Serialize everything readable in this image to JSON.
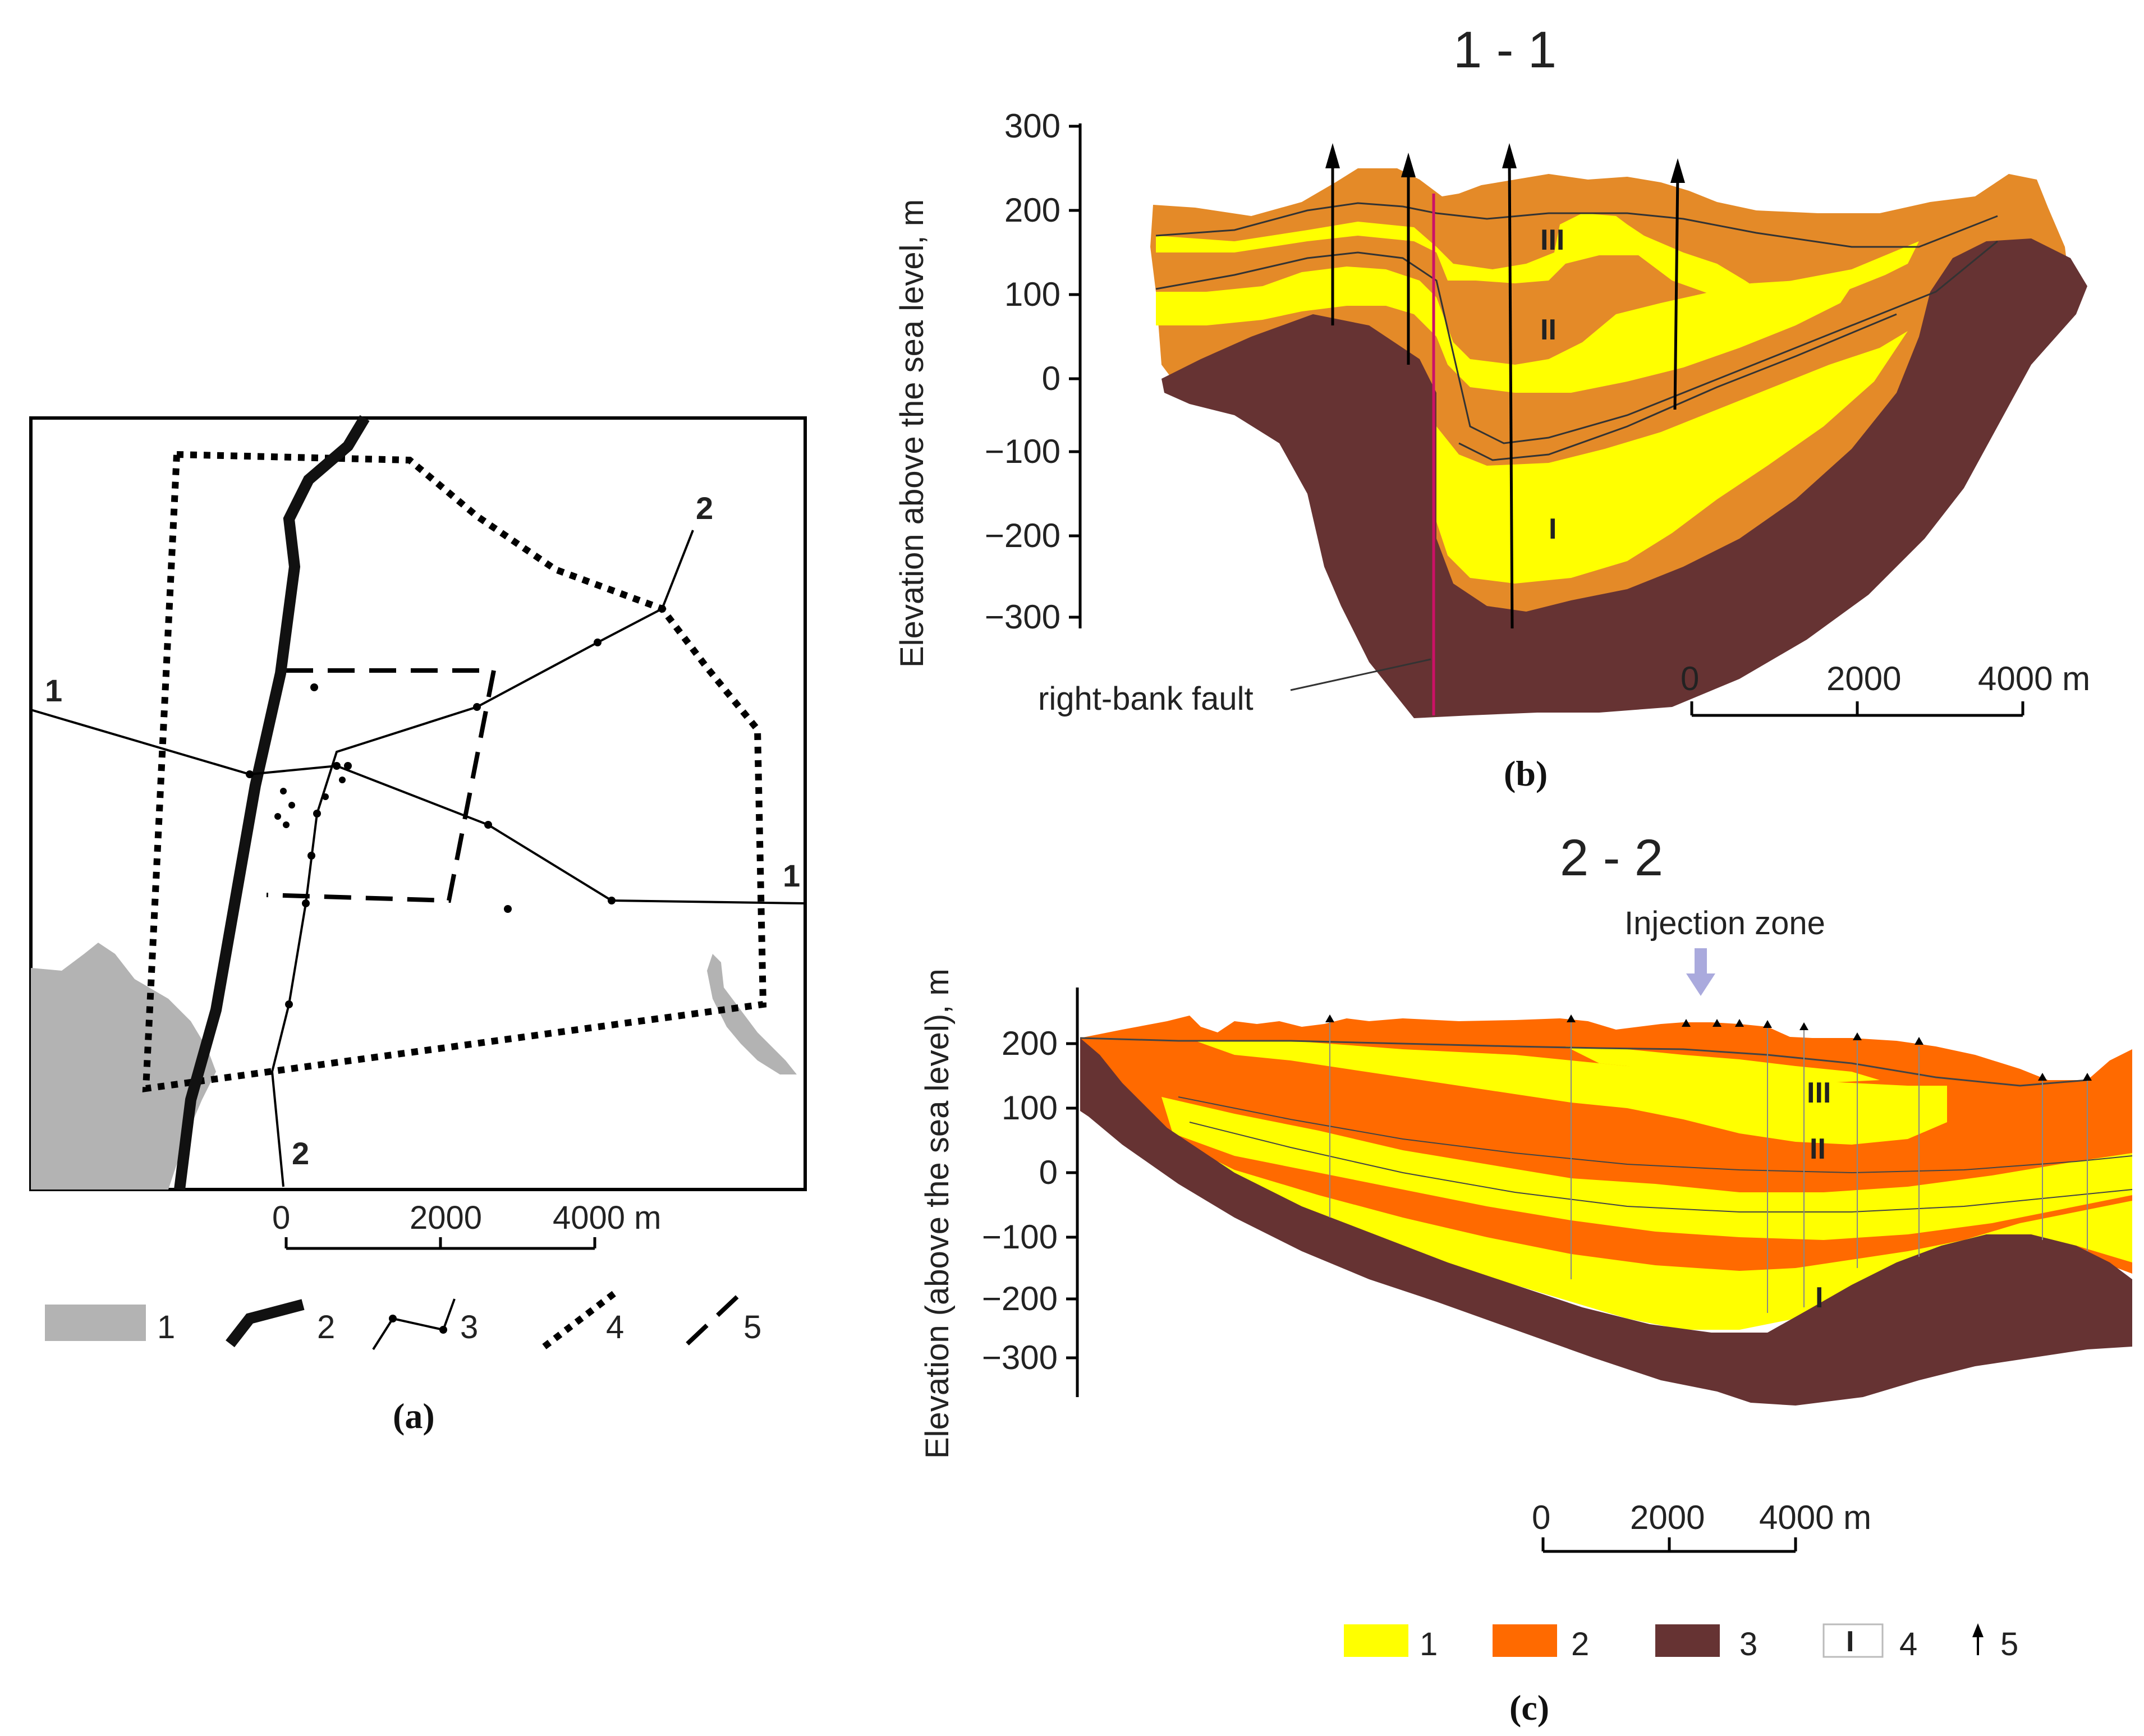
{
  "panel_a": {
    "caption": "(a)",
    "section_labels": {
      "line1_left": "1",
      "line1_right": "1",
      "line2_top": "2",
      "line2_bottom": "2"
    },
    "scale": {
      "tick0": "0",
      "tick1": "2000",
      "tick2": "4000 m"
    },
    "legend": [
      {
        "num": "1",
        "item": "grey-area"
      },
      {
        "num": "2",
        "item": "thick-line"
      },
      {
        "num": "3",
        "item": "section-line"
      },
      {
        "num": "4",
        "item": "dotted-boundary"
      },
      {
        "num": "5",
        "item": "dashed-boundary"
      }
    ]
  },
  "panel_b": {
    "title": "1 - 1",
    "caption": "(b)",
    "ylabel": "Elevation above the sea level, m",
    "yticks": [
      "300",
      "200",
      "100",
      "0",
      "−100",
      "−200",
      "−300"
    ],
    "layer_labels": [
      "III",
      "II",
      "I"
    ],
    "fault_label": "right-bank fault",
    "scale": {
      "tick0": "0",
      "tick1": "2000",
      "tick2": "4000 m"
    }
  },
  "panel_c": {
    "title": "2 - 2",
    "caption": "(c)",
    "annotation": "Injection zone",
    "ylabel": "Elevation (above the sea level), m",
    "yticks": [
      "200",
      "100",
      "0",
      "−100",
      "−200",
      "−300"
    ],
    "layer_labels": [
      "III",
      "II",
      "I"
    ],
    "scale": {
      "tick0": "0",
      "tick1": "2000",
      "tick2": "4000 m"
    },
    "legend": [
      {
        "num": "1",
        "item": "yellow"
      },
      {
        "num": "2",
        "item": "orange"
      },
      {
        "num": "3",
        "item": "brown"
      },
      {
        "num": "4",
        "item": "aquifer-index",
        "symbol": "I"
      },
      {
        "num": "5",
        "item": "well-arrow"
      }
    ]
  },
  "colors": {
    "yellow": "#ffff00",
    "orange_b": "#e48a28",
    "orange_c": "#ff6a00",
    "brown": "#663333",
    "grey": "#b3b3b3",
    "fault": "#cc1166",
    "injection_arrow": "#aaaadd"
  }
}
